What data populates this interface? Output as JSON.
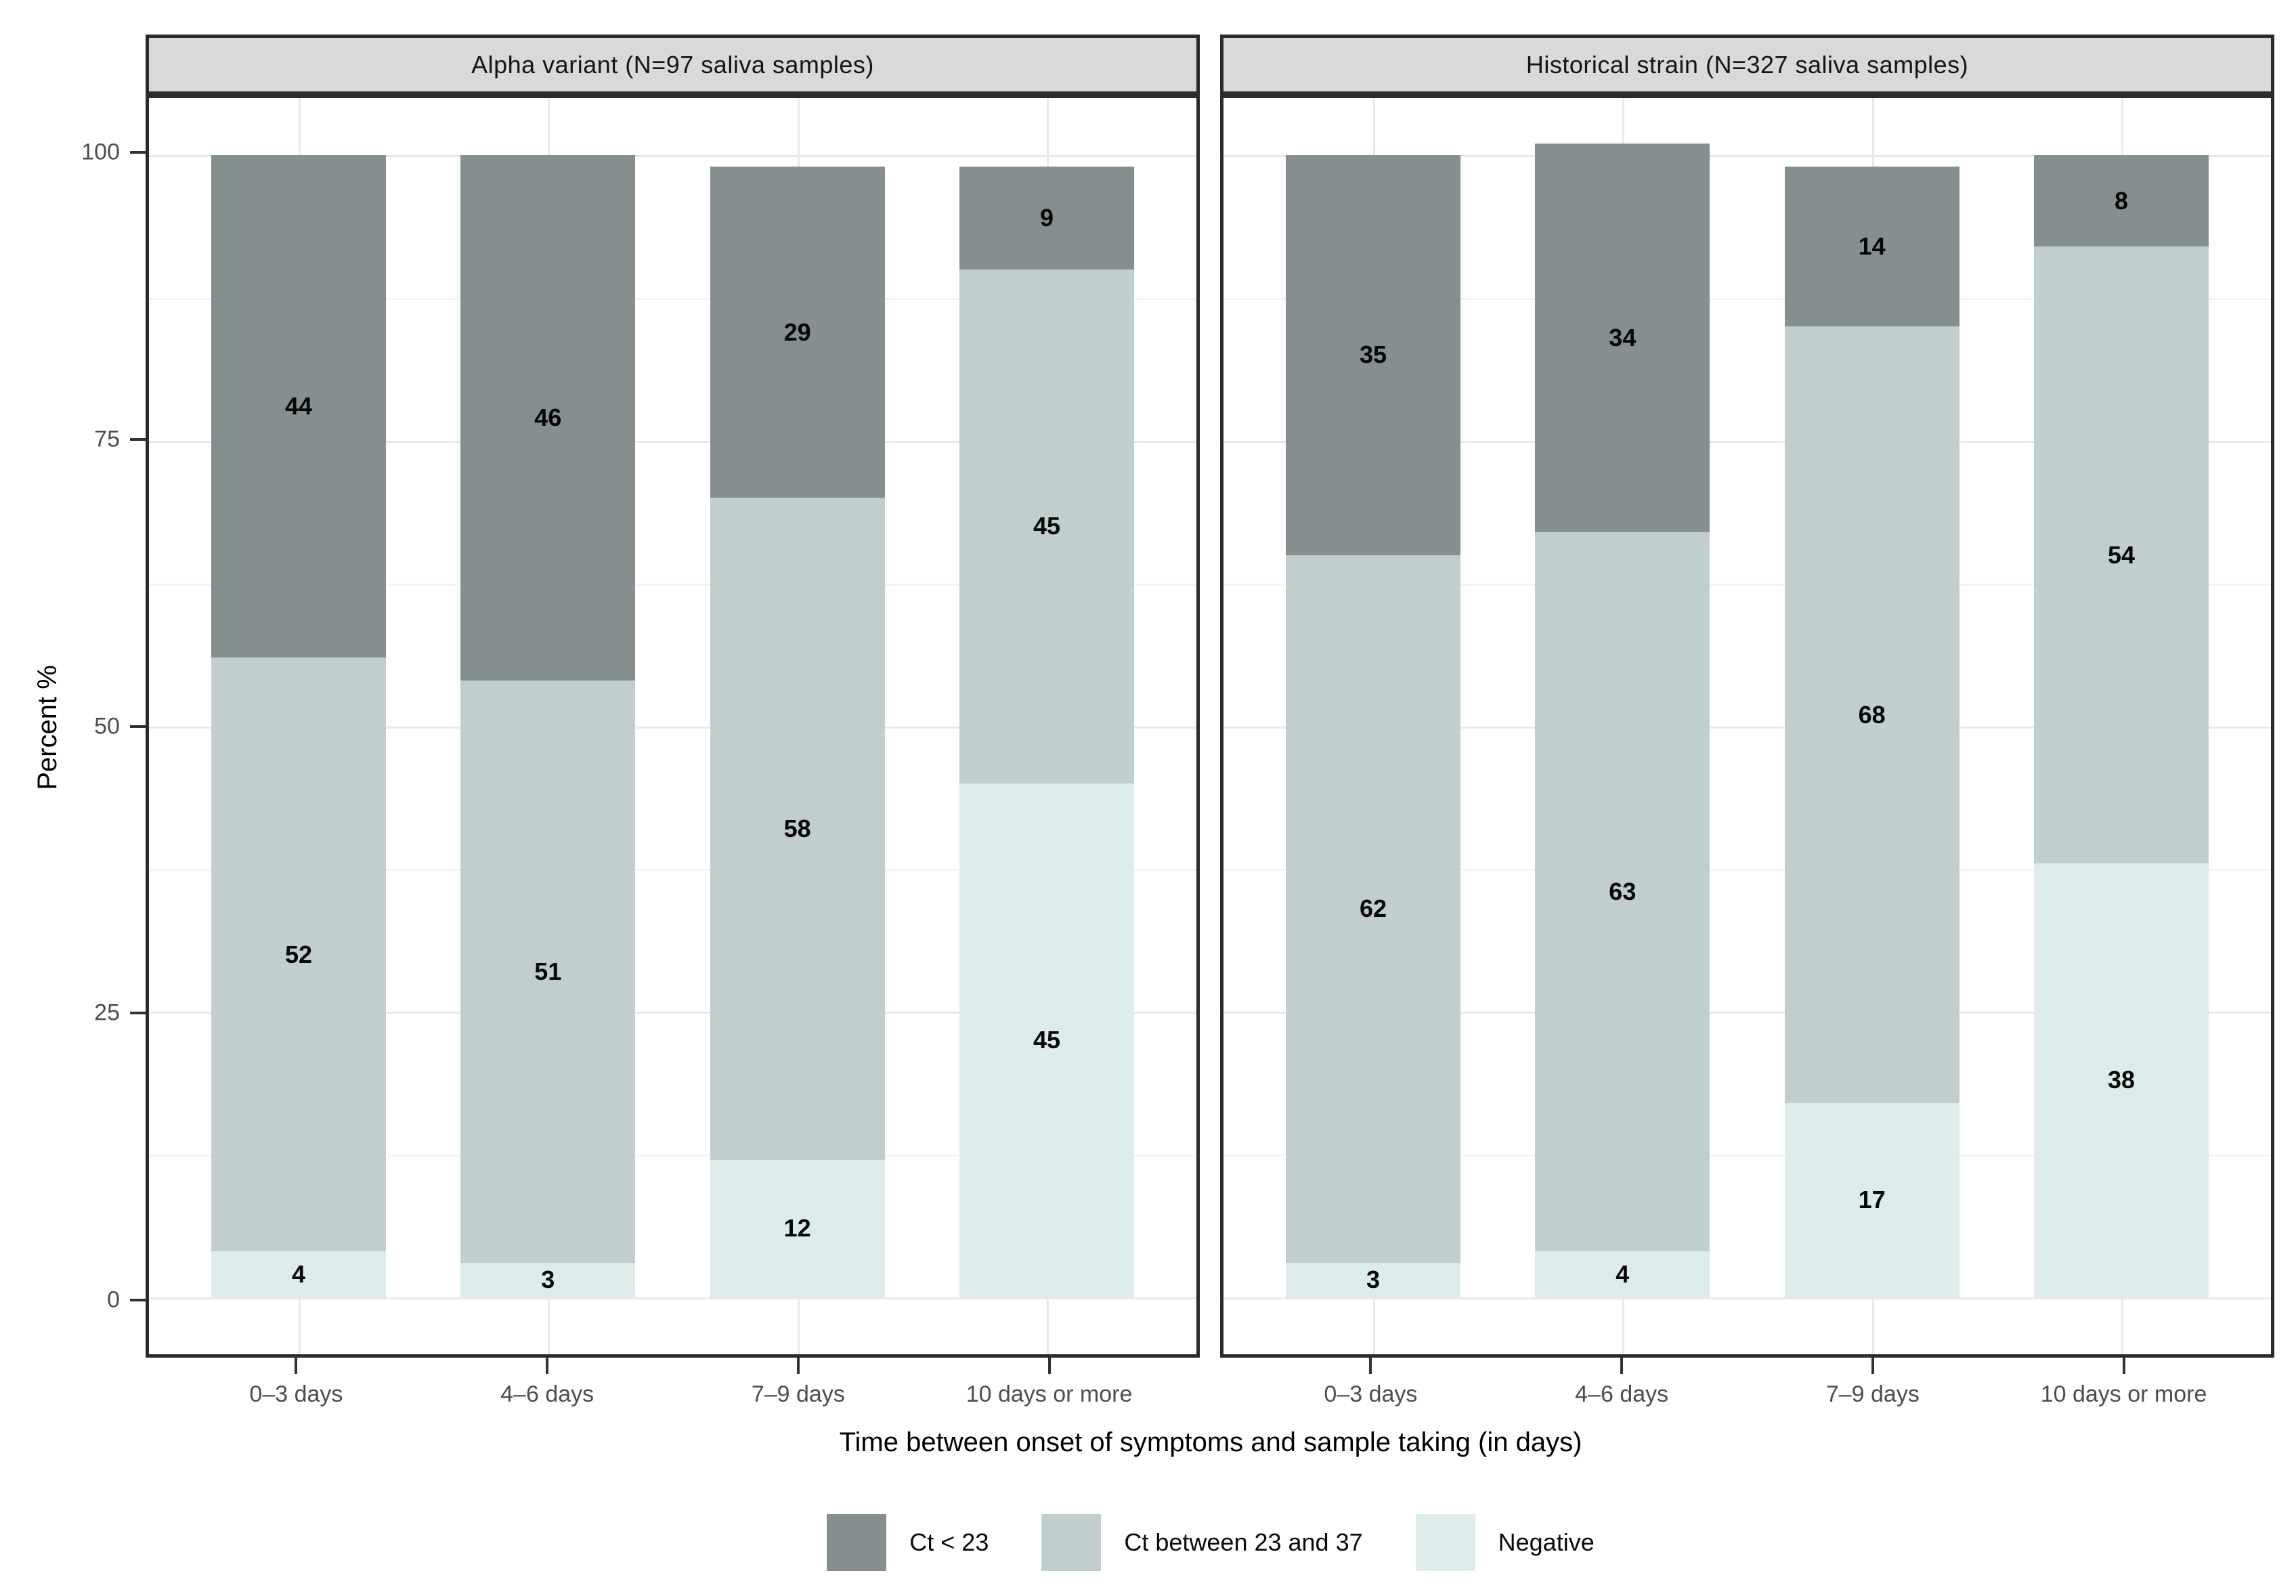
{
  "figure": {
    "background": "#ffffff",
    "panel_border_color": "#2b2b2b",
    "strip_background": "#d9d9d9",
    "grid_major_color": "#e9e9e9",
    "grid_minor_color": "#f4f4f4",
    "tick_label_color": "#4d4d4d"
  },
  "axes": {
    "y_title": "Percent %",
    "x_title": "Time between onset of symptoms and sample taking (in days)",
    "y_tick_labels": [
      "0",
      "25",
      "50",
      "75",
      "100"
    ],
    "y_tick_values": [
      0,
      25,
      50,
      75,
      100
    ],
    "y_minor_tick_values": [
      12.5,
      37.5,
      62.5,
      87.5
    ],
    "y_range": [
      -5,
      105
    ]
  },
  "legend": {
    "items": [
      {
        "label": "Ct < 23",
        "color": "#858f8f"
      },
      {
        "label": "Ct between 23 and 37",
        "color": "#c0cfce"
      },
      {
        "label": "Negative",
        "color": "#dcecea"
      }
    ]
  },
  "chart_data": {
    "type": "bar",
    "stacked": true,
    "unit": "percent",
    "categories": [
      "0–3 days",
      "4–6 days",
      "7–9 days",
      "10 days or more"
    ],
    "xlabel": "Time between onset of symptoms and sample taking (in days)",
    "ylabel": "Percent %",
    "ylim": [
      -5,
      105
    ],
    "grid": "on",
    "legend_position": "bottom",
    "stack_order_bottom_to_top": [
      "Negative",
      "Ct between 23 and 37",
      "Ct < 23"
    ],
    "facets": [
      {
        "title": "Alpha variant (N=97 saliva samples)",
        "series": [
          {
            "name": "Ct < 23",
            "color": "#858f8f",
            "values": [
              44,
              46,
              29,
              9
            ]
          },
          {
            "name": "Ct between 23 and 37",
            "color": "#c0cfce",
            "values": [
              52,
              51,
              58,
              45
            ]
          },
          {
            "name": "Negative",
            "color": "#dcecea",
            "values": [
              4,
              3,
              12,
              45
            ]
          }
        ]
      },
      {
        "title": "Historical strain (N=327 saliva samples)",
        "series": [
          {
            "name": "Ct < 23",
            "color": "#858f8f",
            "values": [
              35,
              34,
              14,
              8
            ]
          },
          {
            "name": "Ct between 23 and 37",
            "color": "#c0cfce",
            "values": [
              62,
              63,
              68,
              54
            ]
          },
          {
            "name": "Negative",
            "color": "#dcecea",
            "values": [
              3,
              4,
              17,
              38
            ]
          }
        ]
      }
    ]
  }
}
